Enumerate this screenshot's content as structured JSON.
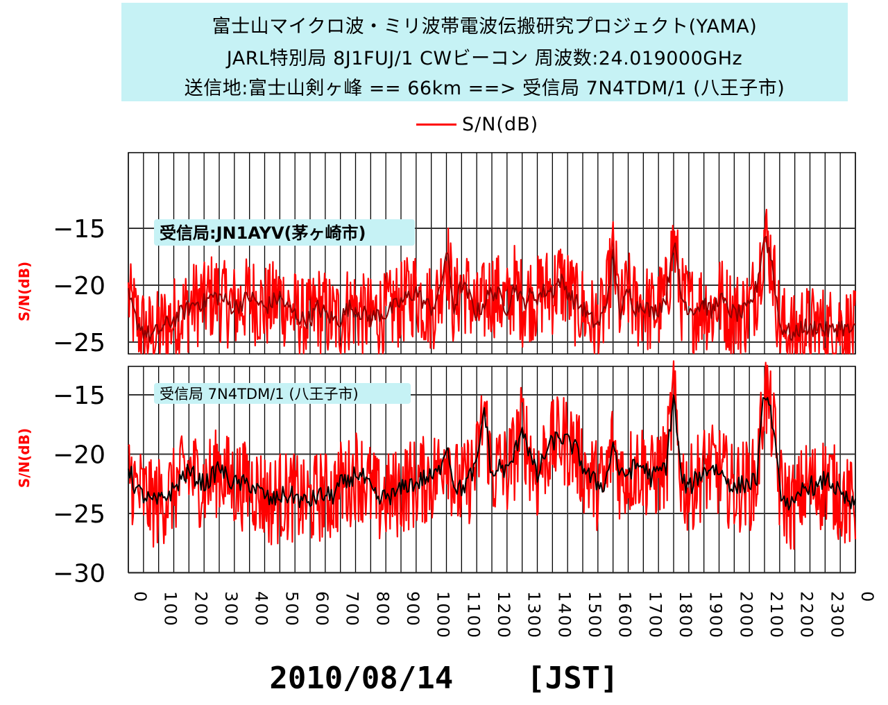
{
  "header": {
    "line1": "富士山マイクロ波・ミリ波帯電波伝搬研究プロジェクト(YAMA)",
    "line2": "JARL特別局 8J1FUJ/1 CWビーコン 周波数:24.019000GHz",
    "line3": "送信地:富士山剣ヶ峰 == 66km ==> 受信局 7N4TDM/1 (八王子市)"
  },
  "colors": {
    "raw": "#ff0000",
    "avg_top": "#8b0000",
    "avg_bottom": "#000000",
    "header_bg": "#c6f2f5",
    "label_bg": "#c6f2f5"
  },
  "chart_data": [
    {
      "type": "line",
      "name": "top-panel",
      "station_label": "受信局:JN1AYV(茅ヶ崎市)",
      "legend": "S/N(dB)",
      "ylabel": "S/N(dB)",
      "ylim": [
        -26,
        -8
      ],
      "yticks": [
        -15,
        -20,
        -25
      ],
      "xlim": [
        0,
        2400
      ],
      "xtick_labels": [
        "0",
        "100",
        "200",
        "300",
        "400",
        "500",
        "600",
        "700",
        "800",
        "900",
        "1000",
        "1100",
        "1200",
        "1300",
        "1400",
        "1500",
        "1600",
        "1700",
        "1800",
        "1900",
        "2000",
        "2100",
        "2200",
        "2300",
        "0"
      ],
      "grid": true,
      "series": [
        {
          "name": "S/N(dB)",
          "x": [
            0,
            25,
            50,
            75,
            100,
            125,
            150,
            175,
            200,
            225,
            250,
            275,
            300,
            325,
            350,
            375,
            400,
            425,
            450,
            475,
            500,
            525,
            550,
            575,
            600,
            625,
            650,
            675,
            700,
            725,
            750,
            775,
            800,
            825,
            850,
            875,
            900,
            925,
            950,
            975,
            1000,
            1025,
            1050,
            1075,
            1100,
            1125,
            1150,
            1175,
            1200,
            1225,
            1250,
            1275,
            1300,
            1325,
            1350,
            1375,
            1400,
            1425,
            1450,
            1475,
            1500,
            1525,
            1550,
            1575,
            1600,
            1625,
            1650,
            1675,
            1700,
            1725,
            1750,
            1775,
            1800,
            1825,
            1850,
            1875,
            1900,
            1925,
            1950,
            1975,
            2000,
            2025,
            2050,
            2075,
            2100,
            2125,
            2150,
            2175,
            2200,
            2225,
            2250,
            2275,
            2300,
            2325,
            2350,
            2375,
            2400
          ],
          "y_avg": [
            -21,
            -23,
            -24,
            -24.5,
            -24,
            -23.5,
            -23,
            -22.5,
            -22,
            -21.5,
            -21.5,
            -21,
            -21,
            -21.5,
            -22,
            -21.5,
            -21,
            -21.5,
            -22,
            -21.5,
            -21,
            -22,
            -22.5,
            -23,
            -23,
            -22,
            -22.5,
            -23,
            -23,
            -22,
            -22,
            -22.5,
            -23,
            -22.5,
            -22.5,
            -22,
            -21.5,
            -21,
            -20.5,
            -21.5,
            -22,
            -21,
            -17,
            -22,
            -20,
            -21,
            -22.5,
            -21.5,
            -20.5,
            -21,
            -22,
            -20,
            -21.5,
            -21,
            -21,
            -20.5,
            -20.5,
            -19.5,
            -20.5,
            -21.5,
            -22,
            -23,
            -23.5,
            -22,
            -17.5,
            -22.5,
            -20.5,
            -22,
            -21.5,
            -22.5,
            -22,
            -21,
            -16,
            -21,
            -22,
            -22,
            -21.5,
            -22.5,
            -21,
            -22,
            -22.5,
            -22.5,
            -22,
            -20,
            -15.5,
            -18,
            -23.5,
            -24,
            -24.5,
            -23.5,
            -24,
            -23.5,
            -24,
            -24,
            -23.5,
            -24,
            -24
          ]
        }
      ]
    },
    {
      "type": "line",
      "name": "bottom-panel",
      "station_label": "受信局 7N4TDM/1 (八王子市)",
      "ylabel": "S/N(dB)",
      "ylim": [
        -30,
        -13
      ],
      "yticks": [
        -15,
        -20,
        -25,
        -30
      ],
      "xlim": [
        0,
        2400
      ],
      "xlabel": "2010/08/14    [JST]",
      "grid": true,
      "series": [
        {
          "name": "S/N(dB)",
          "x": [
            0,
            25,
            50,
            75,
            100,
            125,
            150,
            175,
            200,
            225,
            250,
            275,
            300,
            325,
            350,
            375,
            400,
            425,
            450,
            475,
            500,
            525,
            550,
            575,
            600,
            625,
            650,
            675,
            700,
            725,
            750,
            775,
            800,
            825,
            850,
            875,
            900,
            925,
            950,
            975,
            1000,
            1025,
            1050,
            1075,
            1100,
            1125,
            1150,
            1175,
            1200,
            1225,
            1250,
            1275,
            1300,
            1325,
            1350,
            1375,
            1400,
            1425,
            1450,
            1475,
            1500,
            1525,
            1550,
            1575,
            1600,
            1625,
            1650,
            1675,
            1700,
            1725,
            1750,
            1775,
            1800,
            1825,
            1850,
            1875,
            1900,
            1925,
            1950,
            1975,
            2000,
            2025,
            2050,
            2075,
            2100,
            2125,
            2150,
            2175,
            2200,
            2225,
            2250,
            2275,
            2300,
            2325,
            2350,
            2375,
            2400
          ],
          "y_avg": [
            -21,
            -23,
            -23.5,
            -24,
            -24,
            -23.5,
            -23,
            -22,
            -21.5,
            -22,
            -22.5,
            -22,
            -21,
            -22,
            -22.5,
            -22.5,
            -22.5,
            -23,
            -23.5,
            -24,
            -23.5,
            -23.5,
            -23.5,
            -24,
            -24,
            -23.5,
            -23.5,
            -23.5,
            -22.5,
            -22.5,
            -21.5,
            -22,
            -23,
            -24,
            -23.5,
            -23.5,
            -23,
            -22.5,
            -22.5,
            -22,
            -22,
            -21.5,
            -19,
            -22.5,
            -23,
            -22,
            -21,
            -16,
            -22,
            -21,
            -21.5,
            -20,
            -17.5,
            -20,
            -22,
            -20,
            -19,
            -18.5,
            -19,
            -19.5,
            -21,
            -22,
            -22.5,
            -22.5,
            -19,
            -22,
            -21.5,
            -21,
            -21,
            -22,
            -21.5,
            -21,
            -15,
            -22,
            -23,
            -22,
            -21.5,
            -21,
            -21.5,
            -22,
            -23,
            -22.5,
            -22.5,
            -22,
            -14.5,
            -17,
            -23,
            -24,
            -24.5,
            -23,
            -22.5,
            -23,
            -22,
            -22.5,
            -23.5,
            -24,
            -24.5
          ]
        }
      ]
    }
  ]
}
